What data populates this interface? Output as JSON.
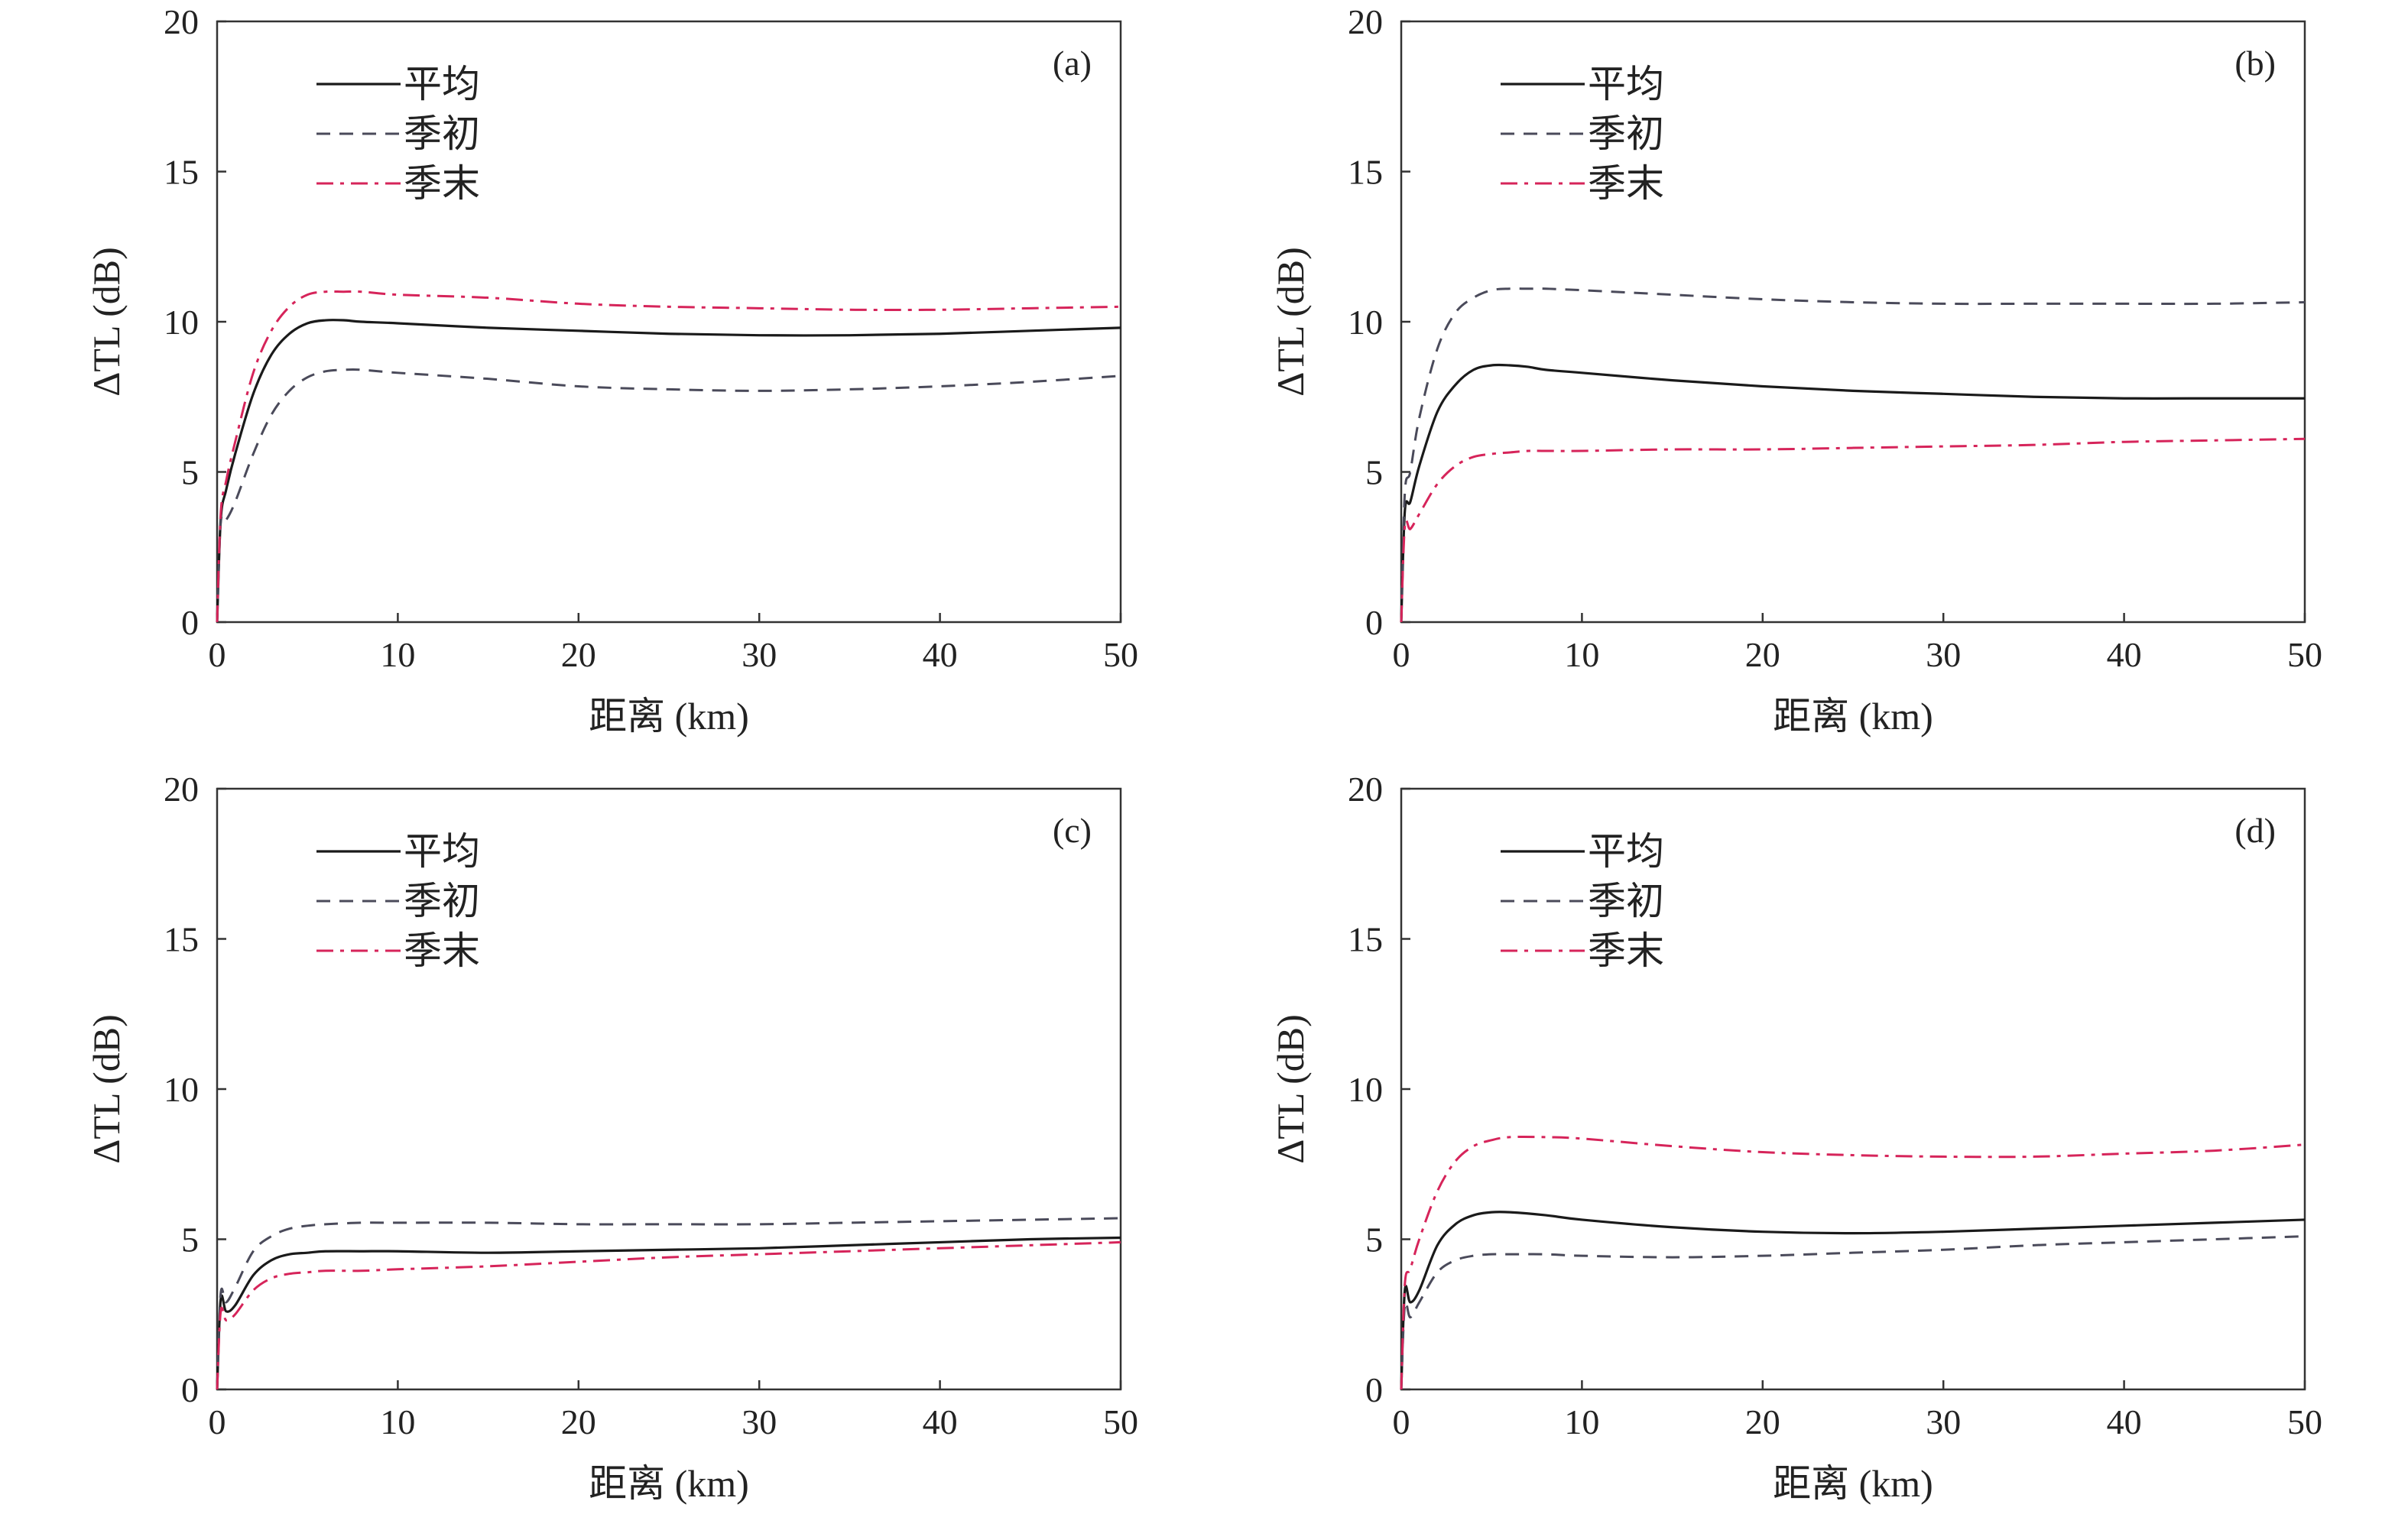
{
  "colors": {
    "mean": "#1a1a1a",
    "early": "#4a4a5a",
    "late": "#d6245a",
    "axis": "#333333",
    "background": "#ffffff"
  },
  "chart_data": [
    {
      "type": "line",
      "panel_label": "(a)",
      "xlabel": "距离 (km)",
      "ylabel": "ΔTL (dB)",
      "xlim": [
        0,
        50
      ],
      "ylim": [
        0,
        20
      ],
      "xticks": [
        "0",
        "10",
        "20",
        "30",
        "40",
        "50"
      ],
      "yticks": [
        "0",
        "5",
        "10",
        "15",
        "20"
      ],
      "grid": false,
      "legend": "top-left",
      "series": [
        {
          "name": "平均",
          "style": "solid",
          "x": [
            0,
            0.2,
            0.5,
            1,
            2,
            3,
            4,
            5,
            6,
            7,
            8,
            10,
            15,
            20,
            25,
            30,
            35,
            40,
            45,
            50
          ],
          "y": [
            0,
            3.4,
            4.4,
            5.6,
            7.6,
            8.9,
            9.6,
            9.95,
            10.05,
            10.05,
            10.0,
            9.95,
            9.8,
            9.7,
            9.6,
            9.55,
            9.55,
            9.6,
            9.7,
            9.8
          ]
        },
        {
          "name": "季初",
          "style": "dashed",
          "x": [
            0,
            0.2,
            0.5,
            1,
            2,
            3,
            4,
            5,
            6,
            7,
            8,
            10,
            15,
            20,
            25,
            30,
            35,
            40,
            45,
            50
          ],
          "y": [
            0,
            3.3,
            3.4,
            4.0,
            5.6,
            6.9,
            7.7,
            8.15,
            8.35,
            8.4,
            8.4,
            8.3,
            8.1,
            7.85,
            7.75,
            7.7,
            7.75,
            7.85,
            8.0,
            8.2
          ]
        },
        {
          "name": "季末",
          "style": "dashdot",
          "x": [
            0,
            0.2,
            0.5,
            1,
            2,
            3,
            4,
            5,
            6,
            7,
            8,
            10,
            15,
            20,
            25,
            30,
            35,
            40,
            45,
            50
          ],
          "y": [
            0,
            3.6,
            4.7,
            6.0,
            8.3,
            9.7,
            10.5,
            10.9,
            11.0,
            11.0,
            11.0,
            10.9,
            10.8,
            10.6,
            10.5,
            10.45,
            10.4,
            10.4,
            10.45,
            10.5
          ]
        }
      ]
    },
    {
      "type": "line",
      "panel_label": "(b)",
      "xlabel": "距离 (km)",
      "ylabel": "ΔTL (dB)",
      "xlim": [
        0,
        50
      ],
      "ylim": [
        0,
        20
      ],
      "xticks": [
        "0",
        "10",
        "20",
        "30",
        "40",
        "50"
      ],
      "yticks": [
        "0",
        "5",
        "10",
        "15",
        "20"
      ],
      "grid": false,
      "legend": "top-left",
      "series": [
        {
          "name": "平均",
          "style": "solid",
          "x": [
            0,
            0.2,
            0.5,
            1,
            2,
            3,
            4,
            5,
            6,
            7,
            8,
            10,
            15,
            20,
            25,
            30,
            35,
            40,
            45,
            50
          ],
          "y": [
            0,
            3.7,
            4.0,
            5.2,
            7.0,
            7.9,
            8.4,
            8.55,
            8.55,
            8.5,
            8.4,
            8.3,
            8.05,
            7.85,
            7.7,
            7.6,
            7.5,
            7.45,
            7.45,
            7.45
          ]
        },
        {
          "name": "季初",
          "style": "dashed",
          "x": [
            0,
            0.2,
            0.5,
            1,
            2,
            3,
            4,
            5,
            6,
            7,
            8,
            10,
            15,
            20,
            25,
            30,
            35,
            40,
            45,
            50
          ],
          "y": [
            0,
            4.3,
            5.0,
            6.8,
            9.1,
            10.3,
            10.8,
            11.05,
            11.1,
            11.1,
            11.1,
            11.05,
            10.9,
            10.75,
            10.65,
            10.6,
            10.6,
            10.6,
            10.6,
            10.65
          ]
        },
        {
          "name": "季末",
          "style": "dashdot",
          "x": [
            0,
            0.2,
            0.5,
            1,
            2,
            3,
            4,
            5,
            6,
            7,
            8,
            10,
            15,
            20,
            25,
            30,
            35,
            40,
            45,
            50
          ],
          "y": [
            0,
            3.2,
            3.1,
            3.6,
            4.6,
            5.2,
            5.5,
            5.6,
            5.65,
            5.7,
            5.7,
            5.7,
            5.75,
            5.75,
            5.8,
            5.85,
            5.9,
            6.0,
            6.05,
            6.1
          ]
        }
      ]
    },
    {
      "type": "line",
      "panel_label": "(c)",
      "xlabel": "距离 (km)",
      "ylabel": "ΔTL (dB)",
      "xlim": [
        0,
        50
      ],
      "ylim": [
        0,
        20
      ],
      "xticks": [
        "0",
        "10",
        "20",
        "30",
        "40",
        "50"
      ],
      "yticks": [
        "0",
        "5",
        "10",
        "15",
        "20"
      ],
      "grid": false,
      "legend": "top-left",
      "series": [
        {
          "name": "平均",
          "style": "solid",
          "x": [
            0,
            0.2,
            0.5,
            1,
            2,
            3,
            4,
            5,
            6,
            8,
            10,
            15,
            20,
            25,
            30,
            35,
            40,
            45,
            50
          ],
          "y": [
            0,
            3.0,
            2.6,
            2.8,
            3.8,
            4.3,
            4.5,
            4.55,
            4.6,
            4.6,
            4.6,
            4.55,
            4.6,
            4.65,
            4.7,
            4.8,
            4.9,
            5.0,
            5.05
          ]
        },
        {
          "name": "季初",
          "style": "dashed",
          "x": [
            0,
            0.2,
            0.5,
            1,
            2,
            3,
            4,
            5,
            6,
            8,
            10,
            15,
            20,
            25,
            30,
            35,
            40,
            45,
            50
          ],
          "y": [
            0,
            3.2,
            2.9,
            3.4,
            4.6,
            5.1,
            5.35,
            5.45,
            5.5,
            5.55,
            5.55,
            5.55,
            5.5,
            5.5,
            5.5,
            5.55,
            5.6,
            5.65,
            5.7
          ]
        },
        {
          "name": "季末",
          "style": "dashdot",
          "x": [
            0,
            0.2,
            0.5,
            1,
            2,
            3,
            4,
            5,
            6,
            8,
            10,
            15,
            20,
            25,
            30,
            35,
            40,
            45,
            50
          ],
          "y": [
            0,
            2.6,
            2.3,
            2.5,
            3.3,
            3.7,
            3.85,
            3.9,
            3.95,
            3.95,
            4.0,
            4.1,
            4.25,
            4.4,
            4.5,
            4.6,
            4.7,
            4.8,
            4.9
          ]
        }
      ]
    },
    {
      "type": "line",
      "panel_label": "(d)",
      "xlabel": "距离 (km)",
      "ylabel": "ΔTL (dB)",
      "xlim": [
        0,
        50
      ],
      "ylim": [
        0,
        20
      ],
      "xticks": [
        "0",
        "10",
        "20",
        "30",
        "40",
        "50"
      ],
      "yticks": [
        "0",
        "5",
        "10",
        "15",
        "20"
      ],
      "grid": false,
      "legend": "top-left",
      "series": [
        {
          "name": "平均",
          "style": "solid",
          "x": [
            0,
            0.2,
            0.5,
            1,
            2,
            3,
            4,
            5,
            6,
            8,
            10,
            15,
            20,
            25,
            30,
            35,
            40,
            45,
            50
          ],
          "y": [
            0,
            3.3,
            2.9,
            3.3,
            4.8,
            5.5,
            5.8,
            5.9,
            5.9,
            5.8,
            5.65,
            5.4,
            5.25,
            5.2,
            5.25,
            5.35,
            5.45,
            5.55,
            5.65
          ]
        },
        {
          "name": "季初",
          "style": "dashed",
          "x": [
            0,
            0.2,
            0.5,
            1,
            2,
            3,
            4,
            5,
            6,
            8,
            10,
            15,
            20,
            25,
            30,
            35,
            40,
            45,
            50
          ],
          "y": [
            0,
            2.8,
            2.4,
            2.9,
            3.9,
            4.3,
            4.45,
            4.5,
            4.5,
            4.5,
            4.45,
            4.4,
            4.45,
            4.55,
            4.65,
            4.8,
            4.9,
            5.0,
            5.1
          ]
        },
        {
          "name": "季末",
          "style": "dashdot",
          "x": [
            0,
            0.2,
            0.5,
            1,
            2,
            3,
            4,
            5,
            6,
            8,
            10,
            15,
            20,
            25,
            30,
            35,
            40,
            45,
            50
          ],
          "y": [
            0,
            3.5,
            4.0,
            5.0,
            6.6,
            7.6,
            8.1,
            8.3,
            8.4,
            8.4,
            8.35,
            8.1,
            7.9,
            7.8,
            7.75,
            7.75,
            7.85,
            7.95,
            8.15
          ]
        }
      ]
    }
  ]
}
